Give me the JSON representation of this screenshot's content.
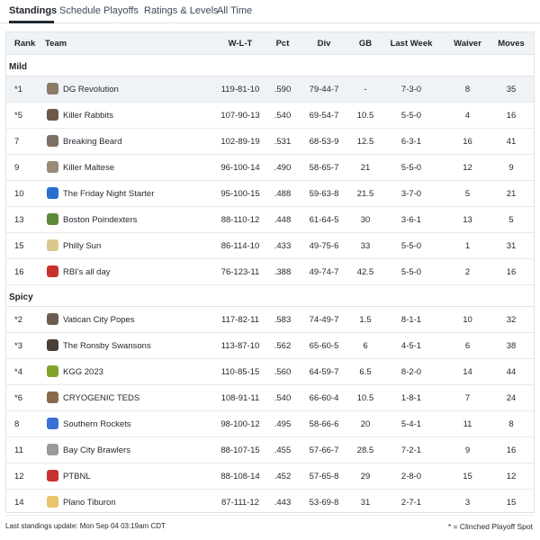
{
  "tabs": [
    {
      "label": "Standings"
    },
    {
      "label": "Schedule"
    },
    {
      "label": "Playoffs"
    },
    {
      "label": "Ratings & Levels"
    },
    {
      "label": "All Time"
    }
  ],
  "columns": {
    "rank": "Rank",
    "team": "Team",
    "wlt": "W-L-T",
    "pct": "Pct",
    "div": "Div",
    "gb": "GB",
    "last_week": "Last Week",
    "waiver": "Waiver",
    "moves": "Moves"
  },
  "groups": [
    {
      "name": "Mild",
      "rows": [
        {
          "rank": "*1",
          "team": "DG Revolution",
          "wlt": "119-81-10",
          "pct": ".590",
          "div": "79-44-7",
          "gb": "-",
          "last_week": "7-3-0",
          "waiver": "8",
          "moves": "35",
          "logo_color": "#8a7a66"
        },
        {
          "rank": "*5",
          "team": "Killer Rabbits",
          "wlt": "107-90-13",
          "pct": ".540",
          "div": "69-54-7",
          "gb": "10.5",
          "last_week": "5-5-0",
          "waiver": "4",
          "moves": "16",
          "logo_color": "#6b5a4a"
        },
        {
          "rank": "7",
          "team": "Breaking Beard",
          "wlt": "102-89-19",
          "pct": ".531",
          "div": "68-53-9",
          "gb": "12.5",
          "last_week": "6-3-1",
          "waiver": "16",
          "moves": "41",
          "logo_color": "#7f6f62"
        },
        {
          "rank": "9",
          "team": "Killer Maltese",
          "wlt": "96-100-14",
          "pct": ".490",
          "div": "58-65-7",
          "gb": "21",
          "last_week": "5-5-0",
          "waiver": "12",
          "moves": "9",
          "logo_color": "#9a8a7a"
        },
        {
          "rank": "10",
          "team": "The Friday Night Starter",
          "wlt": "95-100-15",
          "pct": ".488",
          "div": "59-63-8",
          "gb": "21.5",
          "last_week": "3-7-0",
          "waiver": "5",
          "moves": "21",
          "logo_color": "#2a6fd0"
        },
        {
          "rank": "13",
          "team": "Boston Poindexters",
          "wlt": "88-110-12",
          "pct": ".448",
          "div": "61-64-5",
          "gb": "30",
          "last_week": "3-6-1",
          "waiver": "13",
          "moves": "5",
          "logo_color": "#5c8a3a"
        },
        {
          "rank": "15",
          "team": "Philly Sun",
          "wlt": "86-114-10",
          "pct": ".433",
          "div": "49-75-6",
          "gb": "33",
          "last_week": "5-5-0",
          "waiver": "1",
          "moves": "31",
          "logo_color": "#d9c98a"
        },
        {
          "rank": "16",
          "team": "RBI's all day",
          "wlt": "76-123-11",
          "pct": ".388",
          "div": "49-74-7",
          "gb": "42.5",
          "last_week": "5-5-0",
          "waiver": "2",
          "moves": "16",
          "logo_color": "#c8322f"
        }
      ]
    },
    {
      "name": "Spicy",
      "rows": [
        {
          "rank": "*2",
          "team": "Vatican City Popes",
          "wlt": "117-82-11",
          "pct": ".583",
          "div": "74-49-7",
          "gb": "1.5",
          "last_week": "8-1-1",
          "waiver": "10",
          "moves": "32",
          "logo_color": "#6d5d50"
        },
        {
          "rank": "*3",
          "team": "The Ronsby Swansons",
          "wlt": "113-87-10",
          "pct": ".562",
          "div": "65-60-5",
          "gb": "6",
          "last_week": "4-5-1",
          "waiver": "6",
          "moves": "38",
          "logo_color": "#4a3f38"
        },
        {
          "rank": "*4",
          "team": "KGG 2023",
          "wlt": "110-85-15",
          "pct": ".560",
          "div": "64-59-7",
          "gb": "6.5",
          "last_week": "8-2-0",
          "waiver": "14",
          "moves": "44",
          "logo_color": "#7fa52a"
        },
        {
          "rank": "*6",
          "team": "CRYOGENIC TEDS",
          "wlt": "108-91-11",
          "pct": ".540",
          "div": "66-60-4",
          "gb": "10.5",
          "last_week": "1-8-1",
          "waiver": "7",
          "moves": "24",
          "logo_color": "#8a6a4a"
        },
        {
          "rank": "8",
          "team": "Southern Rockets",
          "wlt": "98-100-12",
          "pct": ".495",
          "div": "58-66-6",
          "gb": "20",
          "last_week": "5-4-1",
          "waiver": "11",
          "moves": "8",
          "logo_color": "#3a6fd8"
        },
        {
          "rank": "11",
          "team": "Bay City Brawlers",
          "wlt": "88-107-15",
          "pct": ".455",
          "div": "57-66-7",
          "gb": "28.5",
          "last_week": "7-2-1",
          "waiver": "9",
          "moves": "16",
          "logo_color": "#9a9a9a"
        },
        {
          "rank": "12",
          "team": "PTBNL",
          "wlt": "88-108-14",
          "pct": ".452",
          "div": "57-65-8",
          "gb": "29",
          "last_week": "2-8-0",
          "waiver": "15",
          "moves": "12",
          "logo_color": "#c8322f"
        },
        {
          "rank": "14",
          "team": "Plano Tiburon",
          "wlt": "87-111-12",
          "pct": ".443",
          "div": "53-69-8",
          "gb": "31",
          "last_week": "2-7-1",
          "waiver": "3",
          "moves": "15",
          "logo_color": "#e8c46a"
        }
      ]
    }
  ],
  "footer": {
    "last_update": "Last standings update: Mon Sep 04 03:19am CDT",
    "legend": "* = Clinched Playoff Spot"
  }
}
